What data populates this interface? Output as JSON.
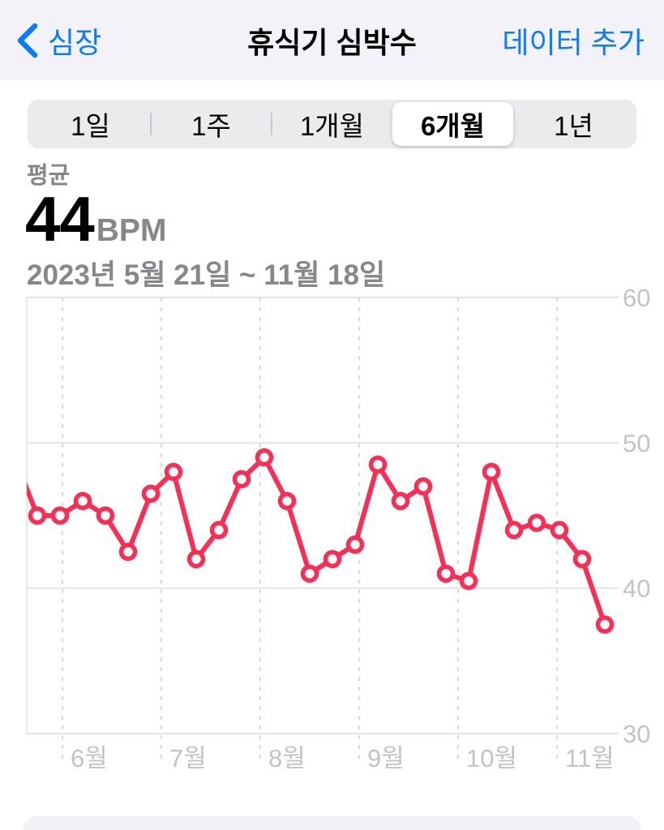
{
  "nav": {
    "back_label": "심장",
    "title": "휴식기 심박수",
    "add_data_label": "데이터 추가"
  },
  "period_selector": {
    "options": [
      "1일",
      "1주",
      "1개월",
      "6개월",
      "1년"
    ],
    "selected": "6개월"
  },
  "summary": {
    "metric_label": "평균",
    "value": "44",
    "unit": "BPM",
    "date_range": "2023년 5월 21일 ~ 11월 18일"
  },
  "chart_data": {
    "type": "line",
    "unit": "BPM",
    "ylim": [
      30,
      60
    ],
    "y_ticks": [
      60,
      50,
      40,
      30
    ],
    "x_tick_labels": [
      "6월",
      "7월",
      "8월",
      "9월",
      "10월",
      "11월"
    ],
    "grid": {
      "horizontal": "solid",
      "vertical": "dashed"
    },
    "legend": "none",
    "sampling": "weekly",
    "first_point_clipped_at_left_edge": true,
    "series": [
      {
        "name": "휴식기 심박수",
        "color": "#FB2D55",
        "values": [
          49,
          45,
          45,
          46,
          45,
          42.5,
          46.5,
          48,
          42,
          44,
          47.5,
          49,
          46,
          41,
          42,
          43,
          48.5,
          46,
          47,
          41,
          40.5,
          48,
          44,
          44.5,
          44,
          42,
          37.5
        ]
      }
    ]
  },
  "colors": {
    "accent_blue": "#0A7AFF",
    "series_pink": "#FB2D55",
    "nav_background": "#F3F2F8",
    "segment_track": "#EBEBED",
    "axis_gray": "#C3C3C7",
    "secondary_text": "#86868B"
  }
}
